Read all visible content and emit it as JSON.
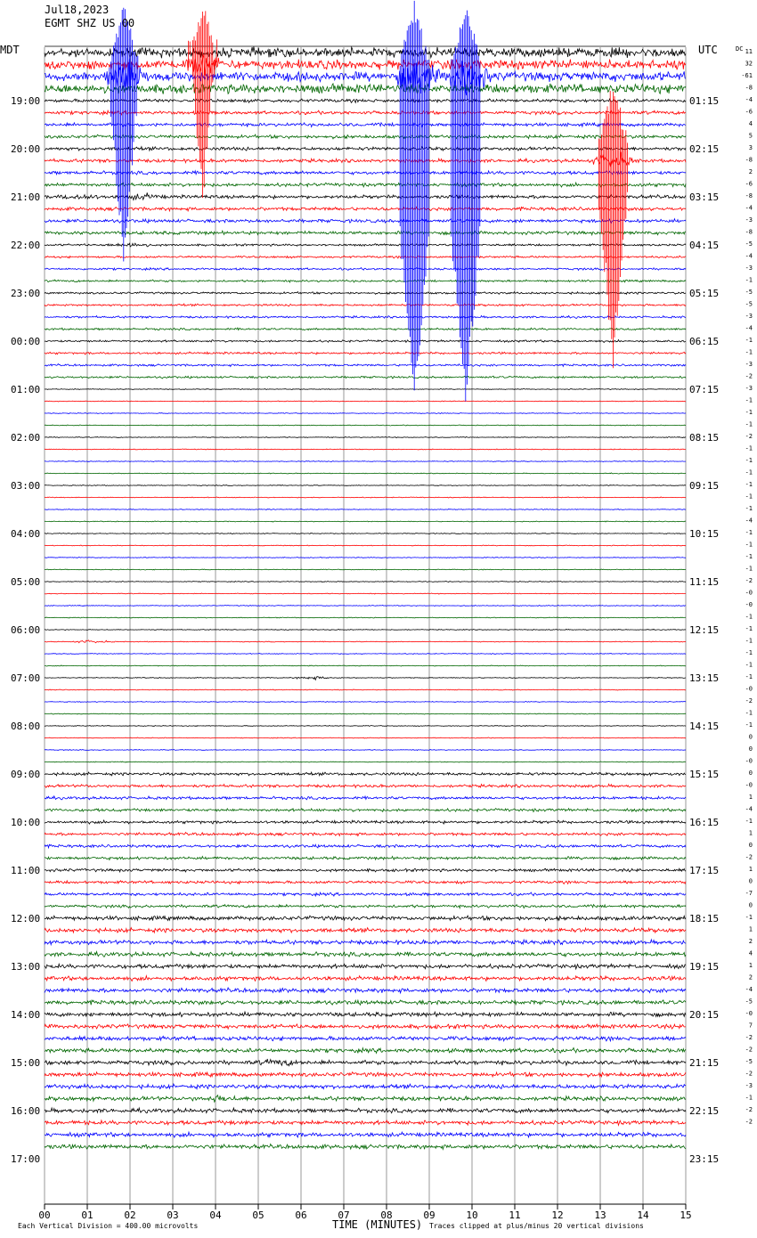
{
  "header": {
    "date": "Jul18,2023",
    "station": "EGMT SHZ US 00",
    "left_timezone": "MDT",
    "right_timezone": "UTC",
    "dc_label": "DC"
  },
  "footer": {
    "xlabel": "TIME (MINUTES)",
    "scale_note": "Each Vertical Division = 400.00 microvolts",
    "clip_note": "Traces clipped at plus/minus 20 vertical divisions"
  },
  "colors": {
    "trace_cycle": [
      "#000000",
      "#ff0000",
      "#0000ff",
      "#006600"
    ],
    "grid": "#000000",
    "background": "#ffffff"
  },
  "chart_data": {
    "type": "helicorder",
    "xlim": [
      0,
      15
    ],
    "x_ticks": [
      "00",
      "01",
      "02",
      "03",
      "04",
      "05",
      "06",
      "07",
      "08",
      "09",
      "10",
      "11",
      "12",
      "13",
      "14",
      "15"
    ],
    "hour_labels_mdt": [
      "19:00",
      "20:00",
      "21:00",
      "22:00",
      "23:00",
      "00:00",
      "01:00",
      "02:00",
      "03:00",
      "04:00",
      "05:00",
      "06:00",
      "07:00",
      "08:00",
      "09:00",
      "10:00",
      "11:00",
      "12:00",
      "13:00",
      "14:00",
      "15:00",
      "16:00",
      "17:00"
    ],
    "hour_labels_utc": [
      "01:15",
      "02:15",
      "03:15",
      "04:15",
      "05:15",
      "06:15",
      "07:15",
      "08:15",
      "09:15",
      "10:15",
      "11:15",
      "12:15",
      "13:15",
      "14:15",
      "15:15",
      "16:15",
      "17:15",
      "18:15",
      "19:15",
      "20:15",
      "21:15",
      "22:15",
      "23:15"
    ],
    "dc_offsets": [
      "11",
      "32",
      "-61",
      "-8",
      "-4",
      "-6",
      "4",
      "5",
      "3",
      "-8",
      "2",
      "-6",
      "-8",
      "-4",
      "-3",
      "-8",
      "-5",
      "-4",
      "-3",
      "-1",
      "-5",
      "-5",
      "-3",
      "-4",
      "-1",
      "-1",
      "-3",
      "-2",
      "-3",
      "-1",
      "-1",
      "-1",
      "-2",
      "-1",
      "-1",
      "-1",
      "-1",
      "-1",
      "-1",
      "-4",
      "-1",
      "-1",
      "-1",
      "-1",
      "-2",
      "-0",
      "-0",
      "-1",
      "-1",
      "-1",
      "-1",
      "-1",
      "-1",
      "-0",
      "-2",
      "-1",
      "-1",
      "0",
      "0",
      "-0",
      "0",
      "-0",
      "1",
      "-4",
      "-1",
      "1",
      "0",
      "-2",
      "1",
      "0",
      "-7",
      "0",
      "-1",
      "1",
      "2",
      "4",
      "1",
      "2",
      "-4",
      "-5",
      "-0",
      "7",
      "-2",
      "-2",
      "-5",
      "-2",
      "-3",
      "-1",
      "-2",
      "-2"
    ],
    "num_traces": 92,
    "events": [
      {
        "trace": 2,
        "minute": 8.7,
        "amplitude": 30,
        "clipped": true
      },
      {
        "trace": 2,
        "minute": 9.9,
        "amplitude": 30,
        "clipped": true
      },
      {
        "trace": 9,
        "minute": 13.3,
        "amplitude": 12,
        "clipped": true
      },
      {
        "trace": 2,
        "minute": 1.9,
        "amplitude": 20,
        "clipped": true
      },
      {
        "trace": 1,
        "minute": 3.7,
        "amplitude": 12,
        "clipped": true
      },
      {
        "trace": 12,
        "minute": 0.8,
        "amplitude": 3,
        "clipped": false
      },
      {
        "trace": 12,
        "minute": 2.3,
        "amplitude": 3,
        "clipped": false
      },
      {
        "trace": 16,
        "minute": 2.0,
        "amplitude": 3,
        "clipped": false
      },
      {
        "trace": 49,
        "minute": 1.1,
        "amplitude": 2,
        "clipped": false
      },
      {
        "trace": 52,
        "minute": 6.3,
        "amplitude": 2,
        "clipped": false
      },
      {
        "trace": 87,
        "minute": 4.1,
        "amplitude": 3,
        "clipped": false
      },
      {
        "trace": 84,
        "minute": 5.5,
        "amplitude": 3,
        "clipped": false
      }
    ]
  }
}
